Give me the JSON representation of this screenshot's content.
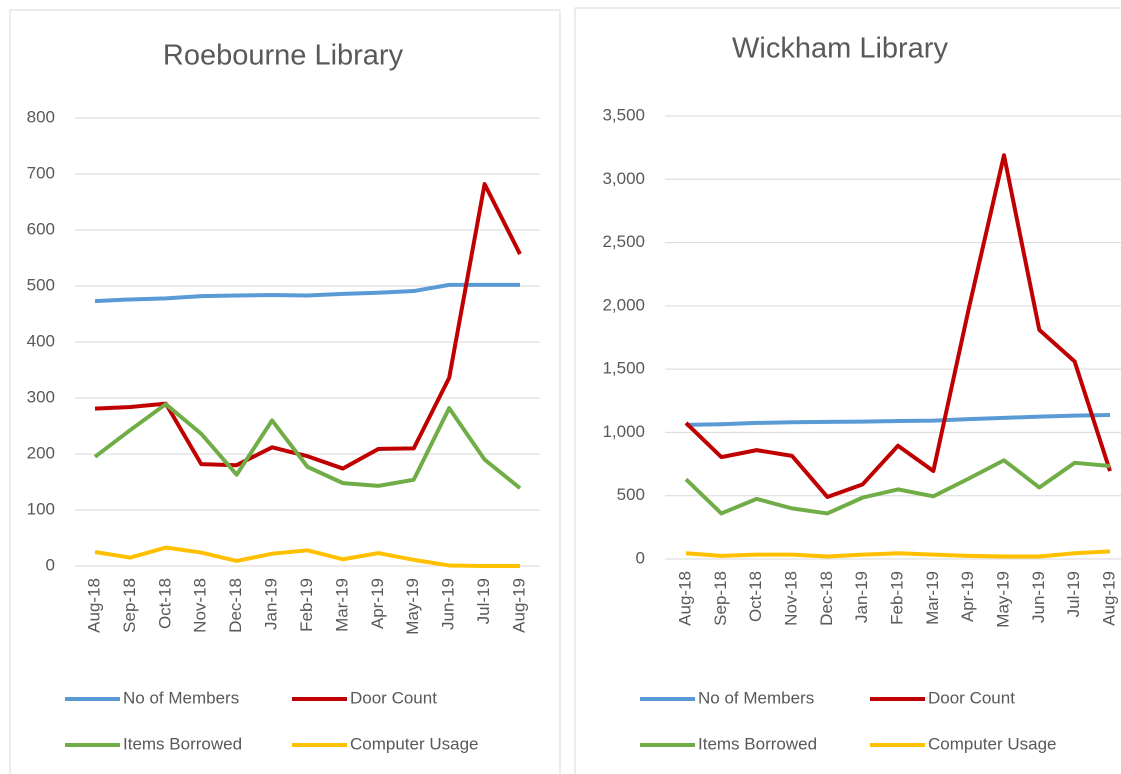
{
  "chart_data": [
    {
      "type": "line",
      "title": "Roebourne Library",
      "categories": [
        "Aug-18",
        "Sep-18",
        "Oct-18",
        "Nov-18",
        "Dec-18",
        "Jan-19",
        "Feb-19",
        "Mar-19",
        "Apr-19",
        "May-19",
        "Jun-19",
        "Jul-19",
        "Aug-19"
      ],
      "series": [
        {
          "name": "No of Members",
          "color": "#5b9bd5",
          "values": [
            473,
            476,
            478,
            482,
            483,
            484,
            483,
            486,
            488,
            491,
            502,
            502,
            502
          ]
        },
        {
          "name": "Door Count",
          "color": "#c00000",
          "values": [
            281,
            284,
            290,
            182,
            180,
            212,
            196,
            174,
            209,
            210,
            336,
            682,
            557
          ]
        },
        {
          "name": "Items Borrowed",
          "color": "#70ad47",
          "values": [
            195,
            243,
            289,
            236,
            163,
            260,
            177,
            148,
            143,
            154,
            282,
            190,
            139
          ]
        },
        {
          "name": "Computer Usage",
          "color": "#ffc000",
          "values": [
            25,
            15,
            33,
            24,
            9,
            22,
            28,
            12,
            23,
            11,
            1,
            0,
            0
          ]
        }
      ],
      "ylim": [
        0,
        800
      ],
      "yticks": [
        0,
        100,
        200,
        300,
        400,
        500,
        600,
        700,
        800
      ],
      "grid": true,
      "legend": "bottom"
    },
    {
      "type": "line",
      "title": "Wickham Library",
      "categories": [
        "Aug-18",
        "Sep-18",
        "Oct-18",
        "Nov-18",
        "Dec-18",
        "Jan-19",
        "Feb-19",
        "Mar-19",
        "Apr-19",
        "May-19",
        "Jun-19",
        "Jul-19",
        "Aug-19"
      ],
      "series": [
        {
          "name": "No of Members",
          "color": "#5b9bd5",
          "values": [
            1060,
            1065,
            1075,
            1080,
            1083,
            1085,
            1090,
            1093,
            1105,
            1115,
            1125,
            1133,
            1138
          ]
        },
        {
          "name": "Door Count",
          "color": "#c00000",
          "values": [
            1075,
            805,
            860,
            815,
            490,
            590,
            895,
            695,
            1975,
            3190,
            1810,
            1560,
            695
          ]
        },
        {
          "name": "Items Borrowed",
          "color": "#70ad47",
          "values": [
            630,
            360,
            475,
            400,
            360,
            485,
            550,
            495,
            635,
            780,
            565,
            760,
            735
          ]
        },
        {
          "name": "Computer Usage",
          "color": "#ffc000",
          "values": [
            45,
            25,
            35,
            35,
            20,
            35,
            45,
            35,
            25,
            20,
            20,
            45,
            60
          ]
        }
      ],
      "ylim": [
        0,
        3500
      ],
      "yticks": [
        0,
        500,
        {
          "value": 1000,
          "label": "1,000"
        },
        {
          "value": 1500,
          "label": "1,500"
        },
        {
          "value": 2000,
          "label": "2,000"
        },
        {
          "value": 2500,
          "label": "2,500"
        },
        {
          "value": 3000,
          "label": "3,000"
        },
        {
          "value": 3500,
          "label": "3,500"
        }
      ],
      "grid": true,
      "legend": "bottom"
    }
  ]
}
